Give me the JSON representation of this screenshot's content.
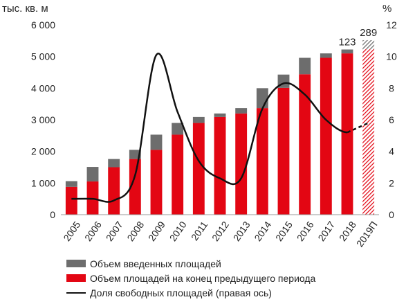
{
  "chart_data": {
    "type": "bar",
    "left_unit": "тыс. кв. м",
    "right_unit": "%",
    "categories": [
      "2005",
      "2006",
      "2007",
      "2008",
      "2009",
      "2010",
      "2011",
      "2012",
      "2013",
      "2014",
      "2015",
      "2016",
      "2017",
      "2018",
      "2019П"
    ],
    "y_ticks": [
      "0",
      "1 000",
      "2 000",
      "3 000",
      "4 000",
      "5 000",
      "6 000"
    ],
    "y2_ticks": [
      "0",
      "2",
      "4",
      "6",
      "8",
      "10",
      "12"
    ],
    "ylim": [
      0,
      6000
    ],
    "y2lim": [
      0,
      12
    ],
    "series": [
      {
        "name": "Объем площадей на конец предыдущего периода",
        "kind": "bar-base",
        "values": [
          880,
          1050,
          1500,
          1760,
          2050,
          2530,
          2900,
          3090,
          3200,
          3370,
          4010,
          4440,
          4960,
          5100,
          5230
        ]
      },
      {
        "name": "Объем введенных площадей",
        "kind": "bar-stack",
        "values": [
          180,
          460,
          260,
          290,
          480,
          370,
          190,
          110,
          170,
          630,
          420,
          520,
          140,
          123,
          289
        ]
      },
      {
        "name": "Доля свободных площадей (правая ось)",
        "kind": "line",
        "values": [
          1.0,
          1.0,
          0.9,
          2.5,
          10.1,
          6.5,
          3.4,
          2.3,
          2.3,
          6.7,
          8.3,
          7.6,
          6.0,
          5.2,
          5.8
        ]
      }
    ],
    "data_labels": [
      {
        "category": "2018",
        "text": "123"
      },
      {
        "category": "2019П",
        "text": "289"
      }
    ],
    "grid": false,
    "legend_position": "bottom-left",
    "colors": {
      "base": "#e30613",
      "added": "#6d6d6d",
      "line": "#111111",
      "forecast_hatch": "#e30613"
    }
  }
}
